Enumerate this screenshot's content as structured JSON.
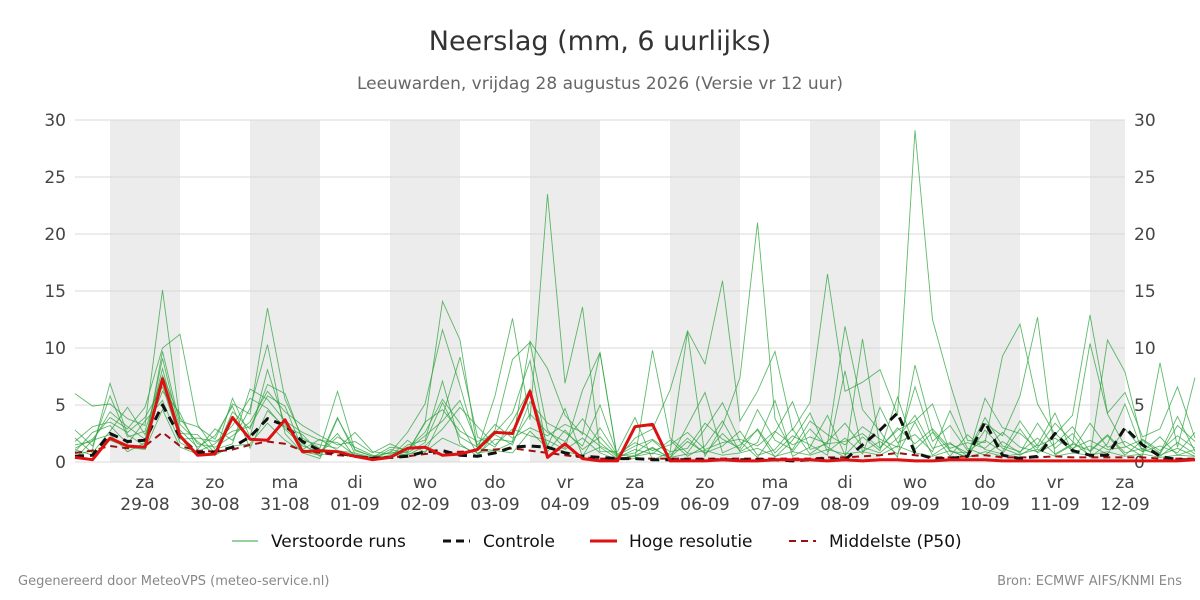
{
  "chart_data": {
    "type": "line",
    "title": "Neerslag (mm, 6 uurlijks)",
    "subtitle": "Leeuwarden, vrijdag 28 augustus 2026 (Versie vr 12 uur)",
    "ylim": [
      0,
      30
    ],
    "yticks": [
      0,
      5,
      10,
      15,
      20,
      25,
      30
    ],
    "x_range": [
      "2026-08-28T12:00",
      "2026-09-12T12:00"
    ],
    "x_ticks": [
      {
        "day": "za",
        "date": "29-08"
      },
      {
        "day": "zo",
        "date": "30-08"
      },
      {
        "day": "ma",
        "date": "31-08"
      },
      {
        "day": "di",
        "date": "01-09"
      },
      {
        "day": "wo",
        "date": "02-09"
      },
      {
        "day": "do",
        "date": "03-09"
      },
      {
        "day": "vr",
        "date": "04-09"
      },
      {
        "day": "za",
        "date": "05-09"
      },
      {
        "day": "zo",
        "date": "06-09"
      },
      {
        "day": "ma",
        "date": "07-09"
      },
      {
        "day": "di",
        "date": "08-09"
      },
      {
        "day": "wo",
        "date": "09-09"
      },
      {
        "day": "do",
        "date": "10-09"
      },
      {
        "day": "vr",
        "date": "11-09"
      },
      {
        "day": "za",
        "date": "12-09"
      }
    ],
    "shaded_days": [
      "29-08",
      "31-08",
      "02-09",
      "04-09",
      "06-09",
      "08-09",
      "10-09",
      "12-09"
    ],
    "grid": true,
    "legend_position": "bottom",
    "series": [
      {
        "name": "Controle",
        "color": "#111111",
        "style": "dashed",
        "values": [
          0.5,
          0.6,
          2.5,
          1.8,
          1.9,
          5.0,
          2.2,
          0.8,
          0.9,
          1.3,
          2.2,
          3.8,
          3.2,
          1.8,
          1.0,
          0.8,
          0.5,
          0.3,
          0.4,
          0.5,
          0.9,
          1.0,
          0.6,
          0.5,
          0.8,
          1.3,
          1.4,
          1.3,
          0.8,
          0.5,
          0.4,
          0.3,
          0.3,
          0.2,
          0.2,
          0.2,
          0.2,
          0.2,
          0.2,
          0.2,
          0.2,
          0.1,
          0.2,
          0.3,
          0.2,
          1.5,
          2.8,
          4.3,
          0.8,
          0.3,
          0.3,
          0.5,
          3.5,
          0.6,
          0.3,
          0.5,
          2.5,
          1.0,
          0.6,
          0.6,
          3.0,
          1.5,
          0.5,
          0.2,
          0.2
        ]
      },
      {
        "name": "Hoge resolutie",
        "color": "#dd1111",
        "style": "solid",
        "values": [
          0.4,
          0.2,
          2.1,
          1.4,
          1.3,
          7.3,
          2.3,
          0.6,
          0.7,
          3.9,
          2.0,
          1.9,
          3.7,
          0.9,
          1.0,
          0.9,
          0.5,
          0.2,
          0.4,
          1.2,
          1.3,
          0.6,
          0.7,
          1.1,
          2.6,
          2.5,
          6.2,
          0.4,
          1.6,
          0.3,
          0.1,
          0.1,
          3.1,
          3.3,
          0.1,
          0.1,
          0.1,
          0.2,
          0.1,
          0.1,
          0.2,
          0.2,
          0.2,
          0.1,
          0.2,
          0.1,
          0.2,
          0.2,
          0.1,
          0.1,
          0.2,
          0.2,
          0.2,
          0.1,
          0.1,
          0.1,
          0.1,
          0.1,
          0.1,
          0.1,
          0.1,
          0.1,
          0.1,
          0.1,
          0.2
        ]
      },
      {
        "name": "Middelste (P50)",
        "color": "#991111",
        "style": "dashed",
        "values": [
          0.8,
          1.0,
          1.4,
          1.2,
          1.4,
          2.6,
          1.4,
          1.0,
          0.9,
          1.1,
          1.5,
          1.8,
          1.6,
          1.0,
          0.8,
          0.6,
          0.5,
          0.4,
          0.4,
          0.5,
          0.7,
          0.8,
          0.9,
          1.0,
          1.1,
          1.2,
          1.0,
          0.8,
          0.6,
          0.4,
          0.3,
          0.3,
          0.3,
          0.3,
          0.3,
          0.3,
          0.3,
          0.3,
          0.3,
          0.3,
          0.3,
          0.3,
          0.3,
          0.4,
          0.4,
          0.5,
          0.6,
          0.8,
          0.6,
          0.4,
          0.4,
          0.5,
          0.6,
          0.4,
          0.4,
          0.4,
          0.5,
          0.4,
          0.4,
          0.4,
          0.4,
          0.4,
          0.3,
          0.3,
          0.3
        ]
      },
      {
        "name": "Verstoorde runs",
        "color": "#2aa33a",
        "style": "thin",
        "ensemble": [
          [
            6.0,
            4.9,
            5.1,
            3.8,
            3.2,
            15.1,
            3.6,
            3.1,
            2.0,
            5.1,
            4.2,
            13.5,
            5.5,
            2.1,
            1.2,
            6.2,
            1.0,
            0.5,
            0.8,
            2.6,
            5.1,
            11.6,
            6.7,
            1.2,
            1.0,
            1.7,
            10.6,
            8.2,
            4.1,
            2.4,
            9.6,
            0.3,
            2.1,
            2.9,
            6.3,
            11.5,
            8.6,
            15.9,
            3.6,
            6.2,
            9.7,
            2.8,
            5.2,
            16.5,
            6.2,
            7.0,
            8.1,
            4.1,
            29.1,
            12.5,
            6.9,
            1.9,
            1.7,
            9.3,
            12.1,
            5.1,
            2.4,
            4.1,
            12.9,
            4.3,
            6.1,
            2.2,
            2.9,
            6.6,
            2.1
          ],
          [
            0.5,
            1.1,
            6.9,
            2.4,
            1.4,
            9.7,
            3.3,
            1.8,
            0.7,
            5.6,
            2.2,
            8.1,
            3.3,
            1.6,
            0.5,
            3.9,
            0.7,
            0.3,
            0.6,
            0.9,
            3.4,
            14.1,
            10.7,
            1.1,
            5.8,
            12.6,
            3.7,
            23.5,
            6.9,
            13.6,
            0.9,
            0.9,
            3.9,
            0.2,
            0.8,
            11.4,
            0.5,
            3.2,
            7.4,
            21.0,
            3.8,
            0.9,
            2.9,
            1.3,
            0.4,
            10.8,
            1.3,
            2.8,
            3.6,
            5.1,
            0.9,
            0.8,
            3.4,
            2.3,
            5.8,
            12.7,
            0.6,
            1.5,
            10.4,
            4.2,
            1.4,
            0.5,
            8.7,
            1.3,
            7.4
          ],
          [
            1.2,
            2.0,
            3.9,
            2.9,
            4.8,
            10.0,
            11.2,
            3.3,
            1.1,
            1.6,
            6.4,
            5.5,
            3.6,
            2.6,
            1.9,
            1.7,
            0.6,
            0.2,
            1.1,
            0.8,
            1.7,
            5.2,
            2.2,
            1.3,
            2.8,
            9.0,
            10.5,
            2.8,
            1.2,
            6.3,
            9.6,
            0.2,
            0.3,
            9.8,
            2.1,
            0.8,
            2.9,
            5.2,
            1.8,
            0.4,
            2.6,
            5.3,
            1.1,
            1.6,
            11.9,
            4.6,
            2.7,
            0.4,
            8.5,
            2.7,
            1.0,
            0.4,
            5.6,
            3.0,
            2.5,
            1.2,
            3.4,
            1.8,
            0.5,
            10.7,
            7.9,
            1.6,
            0.7,
            3.2,
            1.8
          ],
          [
            2.1,
            0.8,
            2.7,
            4.8,
            2.4,
            6.2,
            4.3,
            1.1,
            2.9,
            1.9,
            4.7,
            10.3,
            2.5,
            0.8,
            0.3,
            3.8,
            1.1,
            0.5,
            0.4,
            1.9,
            0.8,
            4.0,
            9.2,
            2.2,
            1.3,
            3.6,
            6.4,
            1.4,
            4.7,
            0.5,
            3.0,
            0.6,
            0.5,
            1.3,
            0.3,
            3.2,
            6.1,
            0.8,
            1.5,
            2.8,
            0.4,
            1.9,
            4.3,
            0.9,
            2.1,
            0.7,
            4.8,
            1.7,
            2.4,
            0.9,
            4.5,
            1.2,
            0.6,
            1.8,
            0.8,
            3.4,
            1.2,
            2.5,
            0.4,
            1.6,
            5.1,
            0.9,
            2.2,
            0.6,
            1.1
          ],
          [
            1.5,
            1.8,
            4.4,
            3.1,
            2.0,
            8.2,
            2.5,
            2.4,
            0.8,
            4.4,
            2.9,
            6.8,
            6.0,
            1.9,
            1.5,
            1.2,
            2.6,
            0.9,
            0.7,
            1.2,
            2.6,
            5.5,
            3.4,
            0.7,
            2.0,
            1.8,
            4.2,
            2.6,
            1.8,
            3.8,
            1.7,
            0.4,
            1.1,
            0.7,
            1.9,
            0.5,
            1.4,
            3.6,
            0.9,
            1.7,
            5.4,
            0.5,
            1.3,
            4.1,
            0.6,
            2.2,
            1.0,
            5.7,
            1.1,
            2.6,
            0.5,
            2.4,
            1.1,
            0.7,
            2.9,
            0.8,
            1.6,
            3.1,
            0.9,
            2.3,
            0.6,
            1.9,
            0.8,
            4.0,
            0.9
          ],
          [
            0.9,
            2.6,
            3.2,
            1.6,
            3.6,
            5.4,
            1.7,
            0.9,
            1.6,
            3.2,
            5.6,
            4.7,
            2.9,
            1.4,
            0.9,
            2.5,
            0.4,
            0.2,
            0.9,
            0.6,
            1.4,
            2.9,
            4.8,
            3.1,
            1.5,
            2.9,
            2.3,
            1.9,
            1.1,
            2.1,
            0.8,
            0.2,
            0.6,
            1.2,
            0.4,
            1.8,
            0.8,
            1.4,
            2.7,
            0.6,
            1.1,
            2.9,
            0.7,
            1.8,
            3.4,
            1.3,
            0.8,
            2.1,
            4.1,
            1.2,
            1.7,
            0.5,
            2.8,
            1.2,
            0.6,
            1.5,
            4.3,
            0.8,
            1.4,
            0.7,
            2.9,
            1.1,
            0.6,
            1.2,
            0.5
          ],
          [
            2.8,
            1.4,
            5.8,
            2.2,
            2.7,
            7.6,
            3.9,
            1.6,
            1.3,
            2.3,
            3.5,
            6.2,
            4.4,
            3.2,
            2.3,
            1.5,
            1.8,
            0.8,
            1.6,
            0.9,
            3.5,
            4.6,
            2.7,
            1.8,
            2.4,
            1.5,
            5.3,
            3.4,
            2.6,
            1.4,
            5.0,
            0.6,
            1.4,
            2.0,
            0.9,
            1.2,
            3.4,
            2.0,
            1.2,
            4.6,
            1.9,
            1.1,
            3.6,
            2.4,
            1.5,
            3.1,
            2.0,
            1.3,
            6.6,
            1.8,
            3.2,
            1.0,
            1.9,
            0.9,
            3.6,
            1.4,
            2.1,
            1.0,
            3.4,
            1.3,
            1.8,
            0.9,
            1.4,
            0.8,
            2.6
          ],
          [
            1.1,
            0.6,
            1.9,
            1.3,
            1.1,
            4.6,
            1.3,
            0.7,
            0.6,
            1.4,
            1.6,
            3.4,
            1.9,
            0.9,
            0.6,
            0.9,
            0.5,
            0.3,
            0.5,
            0.7,
            0.9,
            2.1,
            1.4,
            0.8,
            1.0,
            0.8,
            2.7,
            1.2,
            0.9,
            0.6,
            1.3,
            0.3,
            0.5,
            0.8,
            0.4,
            0.7,
            1.0,
            0.6,
            0.8,
            1.2,
            0.5,
            0.9,
            0.6,
            1.1,
            0.7,
            0.9,
            0.6,
            1.4,
            0.8,
            0.5,
            1.0,
            0.4,
            0.9,
            0.5,
            0.7,
            1.1,
            0.5,
            0.8,
            0.6,
            0.9,
            0.5,
            0.7,
            0.4,
            0.6,
            0.5
          ],
          [
            0.3,
            1.9,
            2.4,
            0.9,
            1.7,
            9.1,
            2.8,
            1.3,
            2.3,
            4.9,
            1.2,
            4.5,
            3.1,
            2.4,
            0.8,
            2.2,
            1.3,
            0.6,
            0.3,
            1.5,
            1.9,
            7.1,
            1.6,
            0.5,
            2.6,
            4.3,
            8.9,
            0.9,
            2.8,
            1.1,
            2.2,
            0.5,
            0.8,
            1.9,
            0.6,
            2.1,
            0.7,
            2.5,
            1.0,
            2.9,
            0.8,
            2.3,
            1.5,
            0.6,
            8.0,
            0.9,
            1.8,
            0.7,
            3.5,
            0.6,
            1.6,
            0.8,
            3.9,
            1.4,
            0.9,
            2.1,
            0.7,
            1.6,
            1.0,
            2.4,
            0.8,
            1.2,
            0.5,
            1.7,
            0.7
          ],
          [
            1.8,
            3.1,
            3.5,
            2.6,
            3.9,
            6.6,
            2.0,
            2.1,
            1.8,
            2.7,
            3.1,
            5.8,
            4.9,
            1.1,
            2.0,
            1.0,
            0.8,
            0.4,
            1.3,
            1.1,
            2.3,
            3.6,
            5.4,
            1.5,
            3.3,
            2.1,
            3.0,
            2.3,
            3.3,
            2.6,
            1.4,
            0.7,
            1.7,
            1.0,
            1.5,
            2.6,
            1.1,
            1.7,
            2.0,
            1.4,
            2.7,
            1.5,
            2.2,
            1.6,
            1.8,
            2.5,
            1.2,
            3.0,
            1.6,
            2.9,
            1.2,
            1.7,
            1.2,
            2.6,
            1.3,
            0.9,
            2.5,
            1.2,
            1.9,
            1.1,
            1.3,
            2.0,
            1.0,
            2.3,
            1.2
          ]
        ]
      }
    ]
  },
  "legend": {
    "perturbed": "Verstoorde runs",
    "control": "Controle",
    "highres": "Hoge resolutie",
    "median": "Middelste (P50)"
  },
  "footer": {
    "left": "Gegenereerd door MeteoVPS (meteo-service.nl)",
    "right": "Bron: ECMWF AIFS/KNMI Ens"
  }
}
